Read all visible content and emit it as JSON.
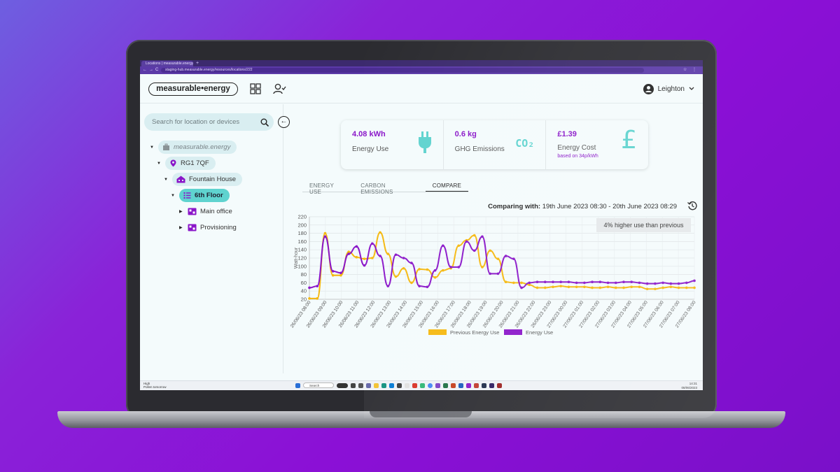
{
  "browser": {
    "tab_title": "Locations | measurable.energy",
    "new_tab": "+",
    "url": "staging-hub.measurable.energy/resources/locations/222",
    "nav_icons": "←→C",
    "ext_icons": "☆ ⋮"
  },
  "header": {
    "logo": "measurable•energy",
    "user_name": "Leighton"
  },
  "sidebar": {
    "search_placeholder": "Search for location or devices",
    "collapse_glyph": "←",
    "tree": [
      {
        "label": "measurable.energy",
        "depth": 0
      },
      {
        "label": "RG1 7QF",
        "depth": 1
      },
      {
        "label": "Fountain House",
        "depth": 2
      },
      {
        "label": "6th Floor",
        "depth": 3
      },
      {
        "label": "Main office",
        "depth": 4
      },
      {
        "label": "Provisioning",
        "depth": 4
      }
    ],
    "caret_open": "▼",
    "caret_closed": "▶"
  },
  "kpis": [
    {
      "value": "4.08 kWh",
      "label": "Energy Use",
      "icon": "plug-icon"
    },
    {
      "value": "0.6 kg",
      "label": "GHG Emissions",
      "icon": "co2-icon"
    },
    {
      "value": "£1.39",
      "label": "Energy Cost",
      "note": "based on 34p/kWh",
      "icon": "pound-icon"
    }
  ],
  "co2_text": "CO₂",
  "pound_glyph": "£",
  "tabs": [
    "ENERGY USE",
    "CARBON EMISSIONS",
    "COMPARE"
  ],
  "compare": {
    "prefix": "Comparing with:",
    "range": " 19th June 2023 08:30 - 20th June 2023 08:29"
  },
  "note": "4% higher use than previous",
  "colors": {
    "accent": "#8a16c9",
    "teal": "#5fd3cf",
    "previous": "#f5b80f",
    "current": "#8a16c9"
  },
  "chart_data": {
    "type": "line",
    "ylabel": "Watt-hour",
    "ylim": [
      20,
      220
    ],
    "yticks": [
      20,
      40,
      60,
      80,
      100,
      120,
      140,
      160,
      180,
      200,
      220
    ],
    "xlabels": [
      "26/06/23 08:00",
      "26/06/23 09:00",
      "26/06/23 10:00",
      "26/06/23 11:00",
      "26/06/23 12:00",
      "26/06/23 13:00",
      "26/06/23 14:00",
      "26/06/23 15:00",
      "26/06/23 16:00",
      "26/06/23 17:00",
      "26/06/23 18:00",
      "26/06/23 19:00",
      "26/06/23 20:00",
      "26/06/23 21:00",
      "26/06/23 22:00",
      "26/06/23 23:00",
      "27/06/23 00:00",
      "27/06/23 01:00",
      "27/06/23 02:00",
      "27/06/23 03:00",
      "27/06/23 04:00",
      "27/06/23 05:00",
      "27/06/23 06:00",
      "27/06/23 07:00",
      "27/06/23 08:00"
    ],
    "series": [
      {
        "name": "Previous Energy Use",
        "values": [
          22,
          22,
          180,
          78,
          78,
          135,
          122,
          118,
          120,
          182,
          130,
          75,
          95,
          60,
          93,
          92,
          73,
          90,
          95,
          150,
          163,
          175,
          98,
          138,
          118,
          62,
          60,
          60,
          55,
          48,
          48,
          50,
          52,
          50,
          50,
          50,
          48,
          48,
          50,
          48,
          48,
          50,
          50,
          45,
          45,
          48,
          50,
          48,
          48,
          48
        ]
      },
      {
        "name": "Energy Use",
        "values": [
          48,
          52,
          172,
          88,
          84,
          130,
          148,
          102,
          155,
          125,
          52,
          128,
          120,
          108,
          52,
          50,
          90,
          150,
          98,
          98,
          160,
          138,
          172,
          82,
          82,
          125,
          118,
          48,
          60,
          62,
          62,
          62,
          62,
          62,
          60,
          60,
          62,
          62,
          60,
          60,
          62,
          62,
          60,
          58,
          58,
          60,
          58,
          58,
          60,
          65
        ]
      }
    ]
  },
  "taskbar": {
    "weather_temp": "High",
    "weather_note": "Pollen tomorrow",
    "search": "Search",
    "time": "14:31",
    "date": "08/06/2023"
  }
}
